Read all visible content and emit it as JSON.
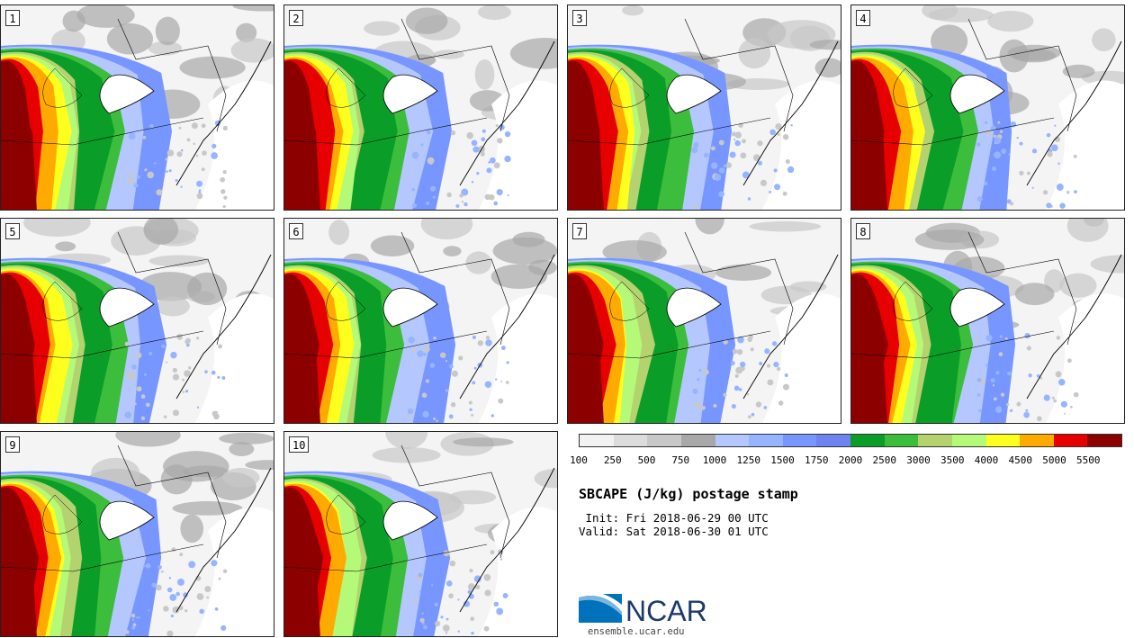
{
  "panels": [
    {
      "label": "1"
    },
    {
      "label": "2"
    },
    {
      "label": "3"
    },
    {
      "label": "4"
    },
    {
      "label": "5"
    },
    {
      "label": "6"
    },
    {
      "label": "7"
    },
    {
      "label": "8"
    },
    {
      "label": "9"
    },
    {
      "label": "10"
    }
  ],
  "colorbar": {
    "colors": [
      "#f2f2f2",
      "#dcdcdc",
      "#c8c8c8",
      "#a8a8a8",
      "#b4c8ff",
      "#96b4ff",
      "#7896ff",
      "#6e82f0",
      "#0a9e28",
      "#3cbe3c",
      "#b4d26e",
      "#b4fa78",
      "#ffff1e",
      "#ffaa00",
      "#e60000",
      "#8c0000"
    ],
    "ticks": [
      "100",
      "250",
      "500",
      "750",
      "1000",
      "1250",
      "1500",
      "1750",
      "2000",
      "2500",
      "3000",
      "3500",
      "4000",
      "4500",
      "5000",
      "5500"
    ]
  },
  "title": "SBCAPE (J/kg) postage stamp",
  "init": " Init: Fri 2018-06-29 00 UTC",
  "valid": "Valid: Sat 2018-06-30 01 UTC",
  "logo": {
    "text": "NCAR",
    "url": "ensemble.ucar.edu",
    "color": "#1b3a6b",
    "accent": "#0072bc"
  }
}
